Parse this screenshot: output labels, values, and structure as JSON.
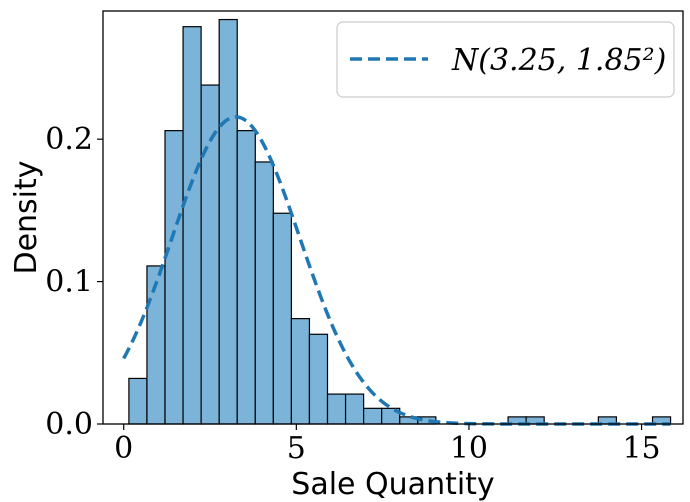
{
  "chart_data": {
    "type": "bar",
    "xlabel": "Sale Quantity",
    "ylabel": "Density",
    "xlim": [
      -0.6,
      16.2
    ],
    "ylim": [
      0,
      0.29
    ],
    "xticks": [
      0,
      5,
      10,
      15
    ],
    "yticks": [
      0.0,
      0.1,
      0.2
    ],
    "xtick_labels": [
      "0",
      "5",
      "10",
      "15"
    ],
    "ytick_labels": [
      "0.0",
      "0.1",
      "0.2"
    ],
    "grid": false,
    "bin_edges": [
      0.15,
      0.673,
      1.196,
      1.719,
      2.242,
      2.765,
      3.288,
      3.811,
      4.334,
      4.857,
      5.38,
      5.903,
      6.426,
      6.949,
      7.472,
      7.995,
      8.518,
      9.041,
      9.564,
      10.087,
      10.61,
      11.133,
      11.656,
      12.179,
      12.702,
      13.225,
      13.748,
      14.271,
      14.794,
      15.317,
      15.84
    ],
    "bar_values": [
      0.032,
      0.111,
      0.206,
      0.279,
      0.238,
      0.284,
      0.206,
      0.184,
      0.148,
      0.074,
      0.063,
      0.021,
      0.021,
      0.011,
      0.011,
      0.005,
      0.005,
      0,
      0,
      0,
      0,
      0.005,
      0.005,
      0,
      0,
      0,
      0.005,
      0,
      0,
      0.005
    ],
    "bar_color": "#7bb3d9",
    "bar_edge_color": "#000000",
    "normal_curve": {
      "name": "N(3.25, 1.85²)",
      "mu": 3.25,
      "sigma": 1.85,
      "x_range": [
        0.0,
        15.84
      ],
      "color": "#1f77b4",
      "style": "dashed"
    },
    "legend_position": "top-right"
  }
}
